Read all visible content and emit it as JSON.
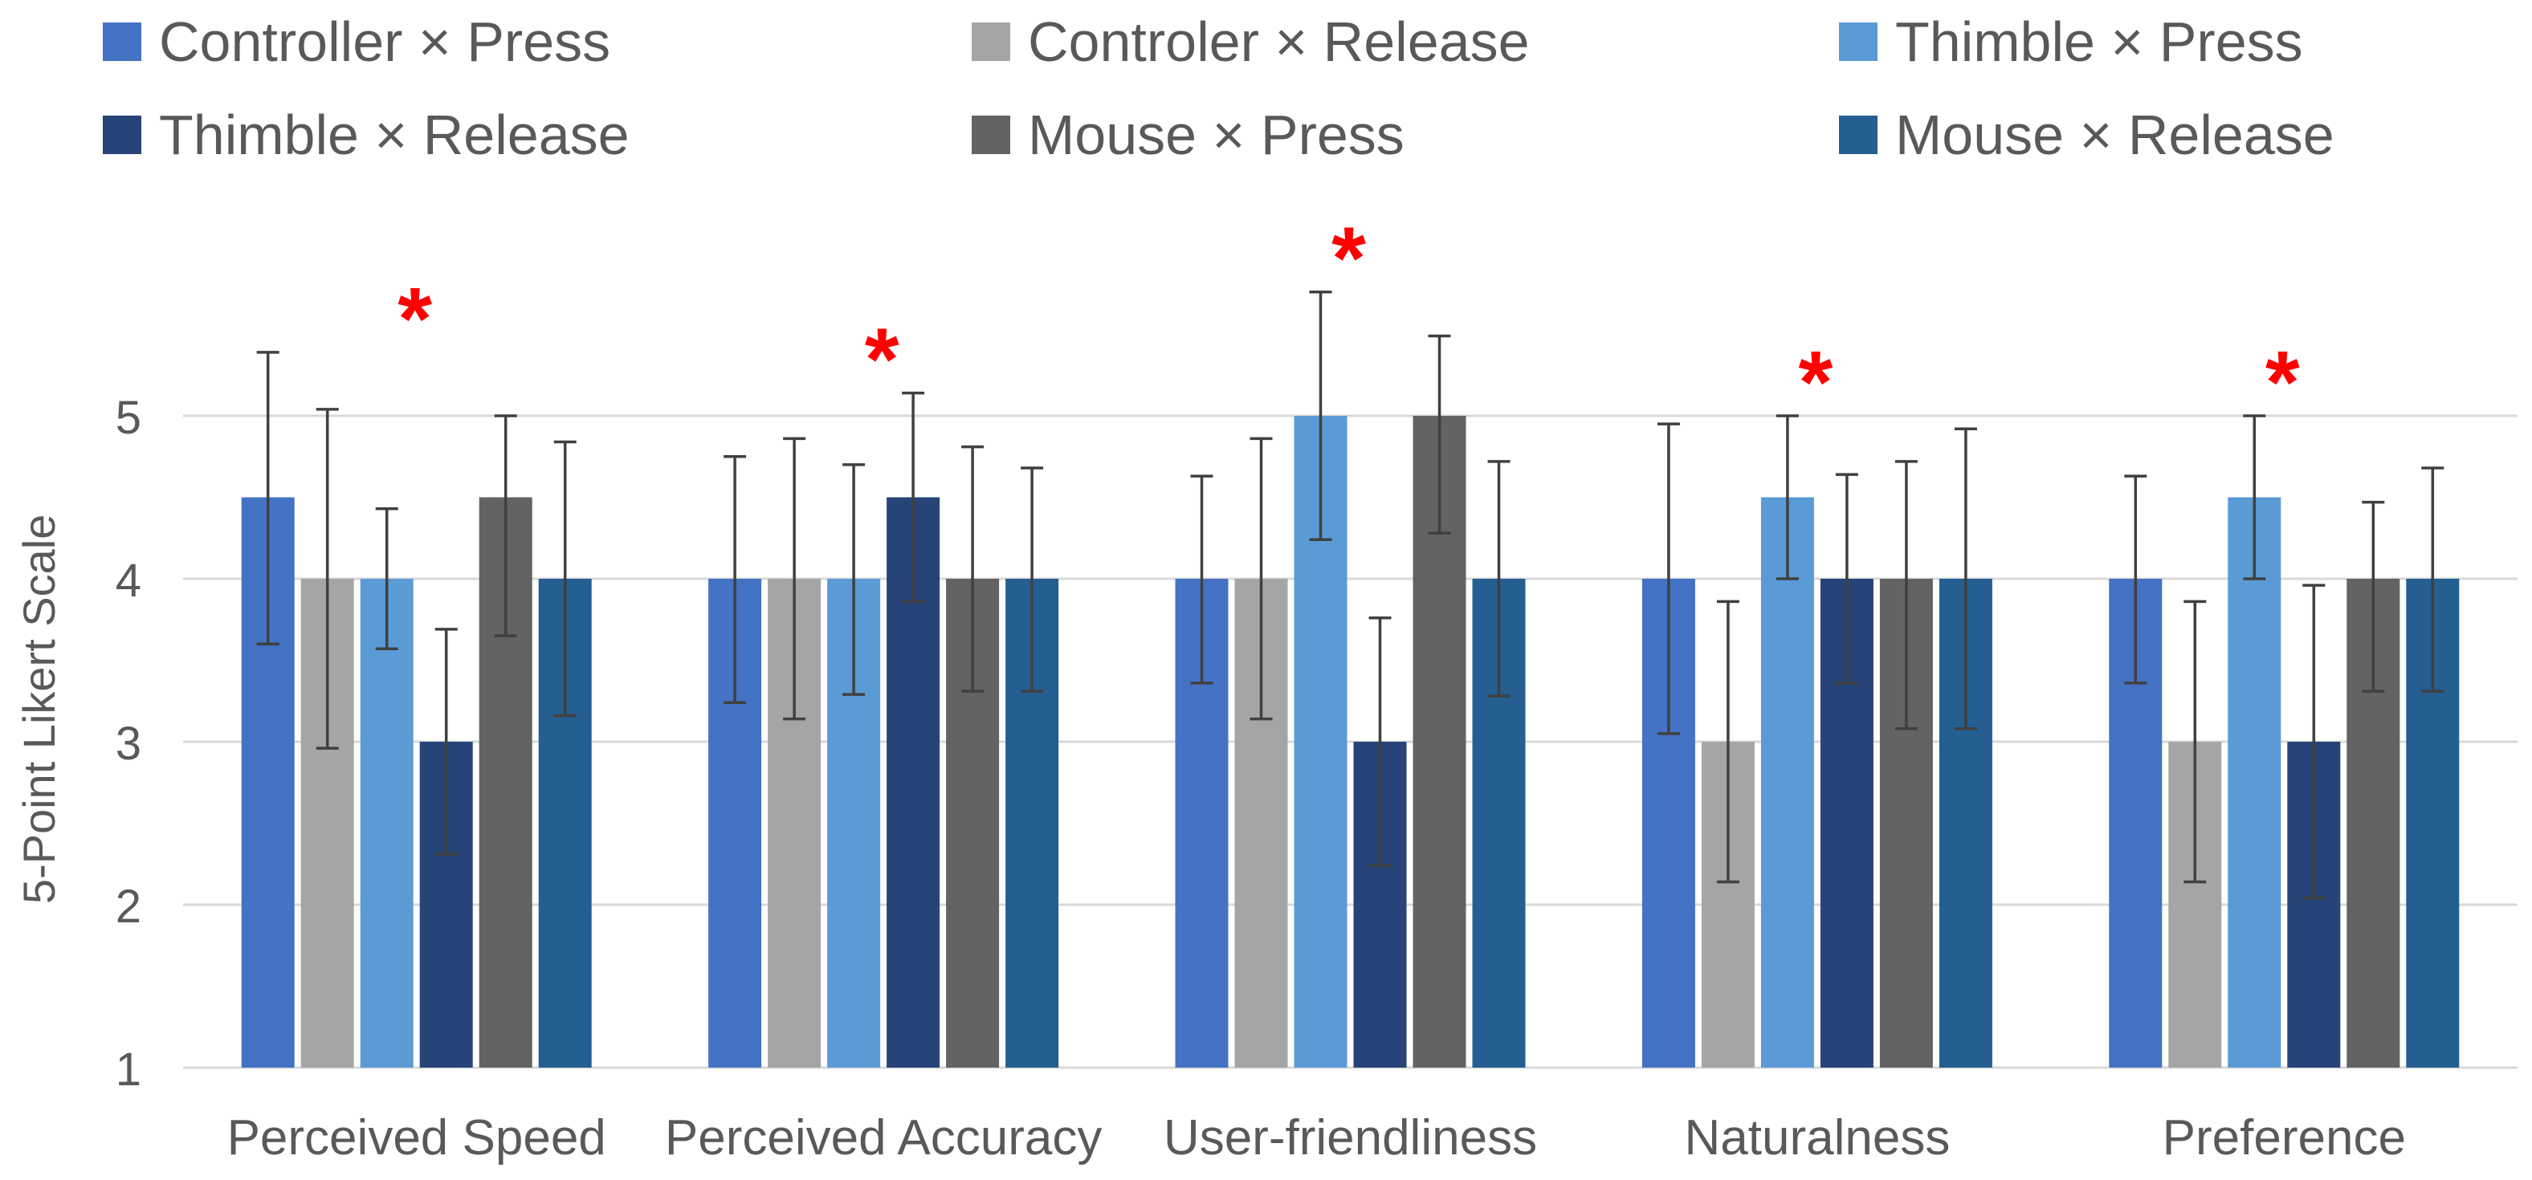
{
  "chart_data": {
    "type": "bar",
    "title": "",
    "xlabel": "",
    "ylabel": "5-Point Likert Scale",
    "ylim": [
      1,
      5.85
    ],
    "yticks": [
      1,
      2,
      3,
      4,
      5
    ],
    "grid": true,
    "legend_position": "top",
    "categories": [
      "Perceived Speed",
      "Perceived Accuracy",
      "User-friendliness",
      "Naturalness",
      "Preference"
    ],
    "significance_marker": "*",
    "significant": [
      true,
      true,
      true,
      true,
      true
    ],
    "significance_color": "#ff0000",
    "error_bar_color": "#404040",
    "gridline_color": "#d9d9d9",
    "series": [
      {
        "name": "Controller × Press",
        "color": "#4472c4",
        "values": [
          4.5,
          4,
          4,
          4,
          4
        ],
        "err_low": [
          3.6,
          3.24,
          3.36,
          3.05,
          3.36
        ],
        "err_high": [
          5.39,
          4.75,
          4.63,
          4.95,
          4.63
        ]
      },
      {
        "name": "Controler × Release",
        "color": "#a5a5a5",
        "values": [
          4,
          4,
          4,
          3,
          3
        ],
        "err_low": [
          2.96,
          3.14,
          3.14,
          2.14,
          2.14
        ],
        "err_high": [
          5.04,
          4.86,
          4.86,
          3.86,
          3.86
        ]
      },
      {
        "name": "Thimble × Press",
        "color": "#5b9bd5",
        "values": [
          4,
          4,
          5,
          4.5,
          4.5
        ],
        "err_low": [
          3.57,
          3.29,
          4.24,
          4,
          4
        ],
        "err_high": [
          4.43,
          4.7,
          5.76,
          5,
          5
        ]
      },
      {
        "name": "Thimble × Release",
        "color": "#264478",
        "values": [
          3,
          4.5,
          3,
          4,
          3
        ],
        "err_low": [
          2.31,
          3.86,
          2.24,
          3.36,
          2.04
        ],
        "err_high": [
          3.69,
          5.14,
          3.76,
          4.64,
          3.96
        ]
      },
      {
        "name": "Mouse × Press",
        "color": "#636363",
        "values": [
          4.5,
          4,
          5,
          4,
          4
        ],
        "err_low": [
          3.65,
          3.31,
          4.28,
          3.08,
          3.31
        ],
        "err_high": [
          5,
          4.81,
          5.49,
          4.72,
          4.47
        ]
      },
      {
        "name": "Mouse × Release",
        "color": "#255e91",
        "values": [
          4,
          4,
          4,
          4,
          4
        ],
        "err_low": [
          3.16,
          3.31,
          3.28,
          3.08,
          3.31
        ],
        "err_high": [
          4.84,
          4.68,
          4.72,
          4.92,
          4.68
        ]
      }
    ]
  }
}
